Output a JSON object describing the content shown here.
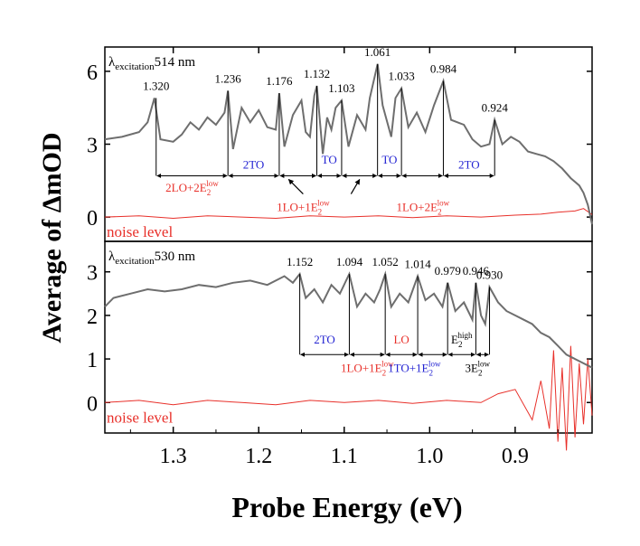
{
  "chart_data": {
    "type": "line",
    "xlabel": "Probe Energy (eV)",
    "ylabel": "Average of ΔmOD",
    "xlim": [
      1.38,
      0.81
    ],
    "x_ticks": [
      "1.3",
      "1.2",
      "1.1",
      "1.0",
      "0.9"
    ],
    "colors": {
      "signal": "#6e6e6e",
      "noise": "#e8302a",
      "blue": "#2323d2",
      "red": "#e8302a",
      "axis": "#000000"
    },
    "panels": [
      {
        "id": "top",
        "condition": {
          "prefix": "λ",
          "sub": "excitation",
          "suffix": "514 nm"
        },
        "ylim": [
          -1.0,
          7.0
        ],
        "y_ticks": [
          0,
          3,
          6
        ],
        "noise_label": "noise level",
        "signal": {
          "x": [
            1.38,
            1.36,
            1.34,
            1.33,
            1.322,
            1.315,
            1.3,
            1.29,
            1.28,
            1.27,
            1.26,
            1.25,
            1.24,
            1.236,
            1.23,
            1.22,
            1.21,
            1.2,
            1.19,
            1.18,
            1.176,
            1.17,
            1.16,
            1.15,
            1.145,
            1.14,
            1.135,
            1.132,
            1.125,
            1.12,
            1.115,
            1.11,
            1.103,
            1.095,
            1.085,
            1.075,
            1.07,
            1.061,
            1.055,
            1.045,
            1.04,
            1.033,
            1.025,
            1.015,
            1.005,
            0.995,
            0.984,
            0.975,
            0.96,
            0.95,
            0.94,
            0.93,
            0.924,
            0.915,
            0.905,
            0.895,
            0.885,
            0.875,
            0.865,
            0.855,
            0.845,
            0.835,
            0.825,
            0.82,
            0.815,
            0.81
          ],
          "y": [
            3.2,
            3.3,
            3.5,
            3.9,
            4.9,
            3.2,
            3.1,
            3.4,
            3.9,
            3.6,
            4.1,
            3.8,
            4.3,
            5.2,
            2.8,
            4.5,
            3.9,
            4.4,
            3.7,
            3.6,
            5.1,
            2.9,
            4.2,
            4.8,
            3.5,
            3.3,
            5.0,
            5.4,
            2.6,
            4.1,
            3.6,
            4.5,
            4.8,
            2.9,
            4.2,
            3.6,
            4.9,
            6.3,
            4.6,
            3.3,
            4.9,
            5.3,
            3.7,
            4.3,
            3.5,
            4.6,
            5.6,
            4.0,
            3.8,
            3.2,
            2.9,
            3.0,
            4.0,
            3.0,
            3.3,
            3.1,
            2.7,
            2.6,
            2.5,
            2.3,
            2.0,
            1.6,
            1.3,
            1.0,
            0.5,
            -0.3
          ]
        },
        "noise": {
          "x": [
            1.38,
            1.34,
            1.3,
            1.26,
            1.22,
            1.18,
            1.14,
            1.1,
            1.06,
            1.02,
            0.98,
            0.94,
            0.9,
            0.87,
            0.85,
            0.83,
            0.82,
            0.81
          ],
          "y": [
            0.0,
            0.05,
            -0.05,
            0.05,
            0.0,
            -0.05,
            0.05,
            0.0,
            0.05,
            -0.02,
            0.05,
            0.0,
            0.08,
            0.12,
            0.2,
            0.25,
            0.35,
            0.1
          ]
        },
        "peaks": [
          {
            "x": 1.32,
            "y": 4.9,
            "label": "1.320"
          },
          {
            "x": 1.236,
            "y": 5.2,
            "label": "1.236"
          },
          {
            "x": 1.176,
            "y": 5.1,
            "label": "1.176"
          },
          {
            "x": 1.132,
            "y": 5.4,
            "label": "1.132"
          },
          {
            "x": 1.103,
            "y": 4.8,
            "label": "1.103"
          },
          {
            "x": 1.061,
            "y": 6.3,
            "label": "1.061"
          },
          {
            "x": 1.033,
            "y": 5.3,
            "label": "1.033"
          },
          {
            "x": 0.984,
            "y": 5.6,
            "label": "0.984"
          },
          {
            "x": 0.924,
            "y": 4.0,
            "label": "0.924"
          }
        ],
        "segments": [
          {
            "x1": 1.32,
            "x2": 1.236,
            "y": 1.7,
            "label": "2LO+2E",
            "sup": "low",
            "sub": "2",
            "color": "red",
            "label_y": 1.05
          },
          {
            "x1": 1.236,
            "x2": 1.176,
            "y": 1.7,
            "label": "2TO",
            "color": "blue",
            "label_y": 2.0
          },
          {
            "x1": 1.176,
            "x2": 1.132,
            "y": 1.7,
            "label": "",
            "color": "black"
          },
          {
            "x1": 1.132,
            "x2": 1.103,
            "y": 1.7,
            "label": "TO",
            "color": "blue",
            "label_y": 2.2
          },
          {
            "x1": 1.103,
            "x2": 1.061,
            "y": 1.7,
            "label": "",
            "color": "black"
          },
          {
            "x1": 1.061,
            "x2": 1.033,
            "y": 1.7,
            "label": "TO",
            "color": "blue",
            "label_y": 2.2
          },
          {
            "x1": 1.033,
            "x2": 0.984,
            "y": 1.7,
            "label": "",
            "color": "black"
          },
          {
            "x1": 0.984,
            "x2": 0.924,
            "y": 1.7,
            "label": "2TO",
            "color": "blue",
            "label_y": 2.0
          }
        ],
        "extra_labels": [
          {
            "x": 1.148,
            "y": 0.25,
            "text": "1LO+1E",
            "sup": "low",
            "sub": "2",
            "color": "red"
          },
          {
            "x": 1.008,
            "y": 0.25,
            "text": "1LO+2E",
            "sup": "low",
            "sub": "2",
            "color": "red"
          }
        ],
        "arrows": [
          {
            "from": [
              1.148,
              0.95
            ],
            "to": [
              1.165,
              1.55
            ]
          },
          {
            "from": [
              1.092,
              0.95
            ],
            "to": [
              1.082,
              1.55
            ]
          }
        ]
      },
      {
        "id": "bottom",
        "condition": {
          "prefix": "λ",
          "sub": "excitation",
          "suffix": "530 nm"
        },
        "ylim": [
          -0.7,
          3.7
        ],
        "y_ticks": [
          0,
          1,
          2,
          3
        ],
        "noise_label": "noise level",
        "signal": {
          "x": [
            1.38,
            1.37,
            1.35,
            1.33,
            1.31,
            1.29,
            1.27,
            1.25,
            1.23,
            1.21,
            1.19,
            1.17,
            1.16,
            1.152,
            1.145,
            1.135,
            1.125,
            1.115,
            1.105,
            1.094,
            1.085,
            1.075,
            1.065,
            1.058,
            1.052,
            1.045,
            1.035,
            1.025,
            1.014,
            1.005,
            0.995,
            0.985,
            0.979,
            0.97,
            0.96,
            0.95,
            0.946,
            0.94,
            0.935,
            0.93,
            0.92,
            0.91,
            0.9,
            0.89,
            0.88,
            0.87,
            0.86,
            0.85,
            0.84,
            0.83,
            0.82,
            0.81
          ],
          "y": [
            2.2,
            2.4,
            2.5,
            2.6,
            2.55,
            2.6,
            2.7,
            2.65,
            2.75,
            2.8,
            2.7,
            2.9,
            2.75,
            2.95,
            2.4,
            2.6,
            2.3,
            2.7,
            2.5,
            2.95,
            2.2,
            2.5,
            2.3,
            2.6,
            2.95,
            2.2,
            2.5,
            2.3,
            2.9,
            2.35,
            2.5,
            2.2,
            2.75,
            2.1,
            2.3,
            1.9,
            2.75,
            2.0,
            1.8,
            2.65,
            2.3,
            2.1,
            2.0,
            1.9,
            1.8,
            1.6,
            1.5,
            1.3,
            1.1,
            1.0,
            0.9,
            0.8
          ]
        },
        "noise": {
          "x": [
            1.38,
            1.34,
            1.3,
            1.26,
            1.22,
            1.18,
            1.14,
            1.1,
            1.06,
            1.02,
            0.98,
            0.94,
            0.92,
            0.9,
            0.88,
            0.87,
            0.86,
            0.855,
            0.85,
            0.845,
            0.84,
            0.835,
            0.83,
            0.825,
            0.82,
            0.815,
            0.81
          ],
          "y": [
            0.0,
            0.05,
            -0.05,
            0.05,
            0.0,
            -0.05,
            0.05,
            0.0,
            0.05,
            -0.02,
            0.05,
            0.0,
            0.2,
            0.3,
            -0.4,
            0.5,
            -0.6,
            1.2,
            -0.9,
            0.8,
            -1.1,
            1.3,
            -0.8,
            0.9,
            -0.5,
            1.0,
            -0.3
          ]
        },
        "peaks": [
          {
            "x": 1.152,
            "y": 2.95,
            "label": "1.152"
          },
          {
            "x": 1.094,
            "y": 2.95,
            "label": "1.094"
          },
          {
            "x": 1.052,
            "y": 2.95,
            "label": "1.052"
          },
          {
            "x": 1.014,
            "y": 2.9,
            "label": "1.014"
          },
          {
            "x": 0.979,
            "y": 2.75,
            "label": "0.979"
          },
          {
            "x": 0.946,
            "y": 2.75,
            "label": "0.946"
          },
          {
            "x": 0.93,
            "y": 2.65,
            "label": "0.930"
          }
        ],
        "segments": [
          {
            "x1": 1.152,
            "x2": 1.094,
            "y": 1.1,
            "label": "2TO",
            "color": "blue",
            "label_y": 1.35
          },
          {
            "x1": 1.094,
            "x2": 1.052,
            "y": 1.1,
            "label": "1LO+1E",
            "sup": "low",
            "sub": "2",
            "color": "red",
            "label_y": 0.7,
            "label_x": 1.073
          },
          {
            "x1": 1.052,
            "x2": 1.014,
            "y": 1.1,
            "label": "LO",
            "color": "red",
            "label_y": 1.35
          },
          {
            "x1": 1.014,
            "x2": 0.979,
            "y": 1.1,
            "label": "1TO+1E",
            "sup": "low",
            "sub": "2",
            "color": "blue",
            "label_y": 0.7,
            "label_x": 1.018
          },
          {
            "x1": 0.979,
            "x2": 0.946,
            "y": 1.1,
            "label": "E",
            "sup": "high",
            "sub": "2",
            "color": "black",
            "label_y": 1.35
          },
          {
            "x1": 0.946,
            "x2": 0.93,
            "y": 1.1,
            "label": "3E",
            "sup": "low",
            "sub": "2",
            "color": "black",
            "label_y": 0.7,
            "label_x": 0.944
          }
        ],
        "extra_labels": [],
        "arrows": []
      }
    ]
  }
}
